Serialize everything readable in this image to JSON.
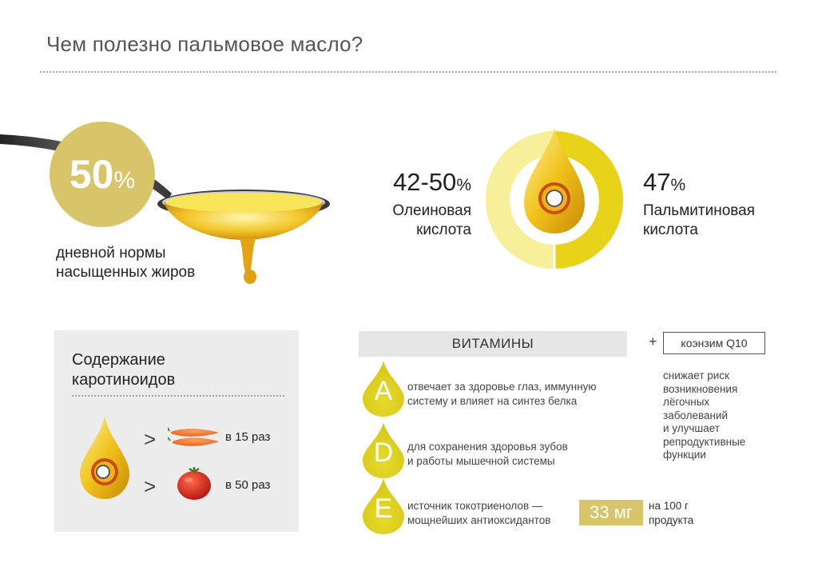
{
  "title": "Чем полезно пальмовое масло?",
  "saturated": {
    "percent_value": "50",
    "percent_sign": "%",
    "caption_line1": "дневной нормы",
    "caption_line2": "насыщенных жиров"
  },
  "acids": {
    "oleic": {
      "value": "42-50",
      "sign": "%",
      "line1": "Олеиновая",
      "line2": "кислота"
    },
    "palmitic": {
      "value": "47",
      "sign": "%",
      "line1": "Пальмитиновая",
      "line2": "кислота"
    }
  },
  "carotenoids": {
    "title_line1": "Содержание",
    "title_line2": "каротиноидов",
    "compare_symbol": ">",
    "rows": [
      {
        "food_icon": "carrot-icon",
        "text": "в 15 раз"
      },
      {
        "food_icon": "tomato-icon",
        "text": "в 50 раз"
      }
    ]
  },
  "vitamins": {
    "header": "ВИТАМИНЫ",
    "items": [
      {
        "letter": "A",
        "line1": "отвечает за здоровье глаз, иммунную",
        "line2": "систему и влияет на синтез белка"
      },
      {
        "letter": "D",
        "line1": "для сохранения здоровья зубов",
        "line2": "и работы мышечной системы"
      },
      {
        "letter": "E",
        "line1": "источник токотриенолов —",
        "line2": "мощнейших антиоксидантов"
      }
    ],
    "e_amount": "33 мг",
    "e_per_line1": "на 100 г",
    "e_per_line2": "продукта"
  },
  "coenzyme": {
    "plus": "+",
    "label": "коэнзим Q10",
    "lines": [
      "снижает риск",
      "возникновения",
      "лёгочных",
      "заболеваний",
      "и улучшает",
      "репродуктивные",
      "функции"
    ]
  },
  "colors": {
    "gold": "#d8c56a",
    "yellow": "#e8d21a",
    "pale_yellow": "#f8ef9a",
    "gray_panel": "#ececec"
  }
}
